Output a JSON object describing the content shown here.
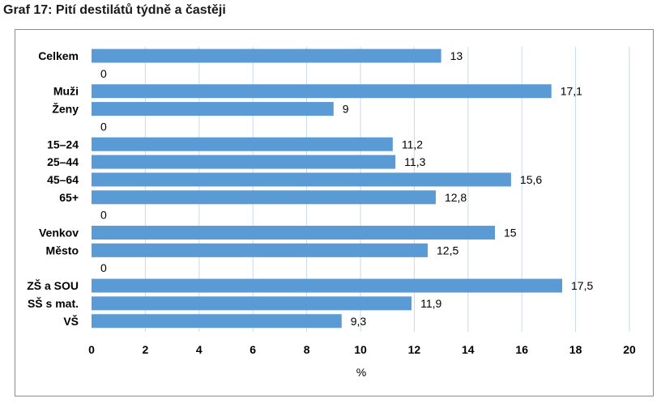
{
  "page": {
    "title": "Graf 17: Pití destilátů týdně a častěji"
  },
  "chart_data": {
    "type": "bar",
    "orientation": "horizontal",
    "title": "Graf 17: Pití destilátů týdně a častěji",
    "xlabel": "%",
    "ylabel": "",
    "xlim": [
      0,
      20
    ],
    "xticks": [
      0,
      2,
      4,
      6,
      8,
      10,
      12,
      14,
      16,
      18,
      20
    ],
    "grid": "vertical",
    "legend": "none",
    "bar_color": "#5b9bd5",
    "categories": [
      "Celkem",
      "",
      "Muži",
      "Ženy",
      "",
      "15–24",
      "25–44",
      "45–64",
      "65+",
      "",
      "Venkov",
      "Město",
      "",
      "ZŠ a SOU",
      "SŠ s mat.",
      "VŠ"
    ],
    "values": [
      13,
      0,
      17.1,
      9,
      0,
      11.2,
      11.3,
      15.6,
      12.8,
      0,
      15,
      12.5,
      0,
      17.5,
      11.9,
      9.3
    ],
    "value_labels": [
      "13",
      "0",
      "17,1",
      "9",
      "0",
      "11,2",
      "11,3",
      "15,6",
      "12,8",
      "0",
      "15",
      "12,5",
      "0",
      "17,5",
      "11,9",
      "9,3"
    ]
  }
}
